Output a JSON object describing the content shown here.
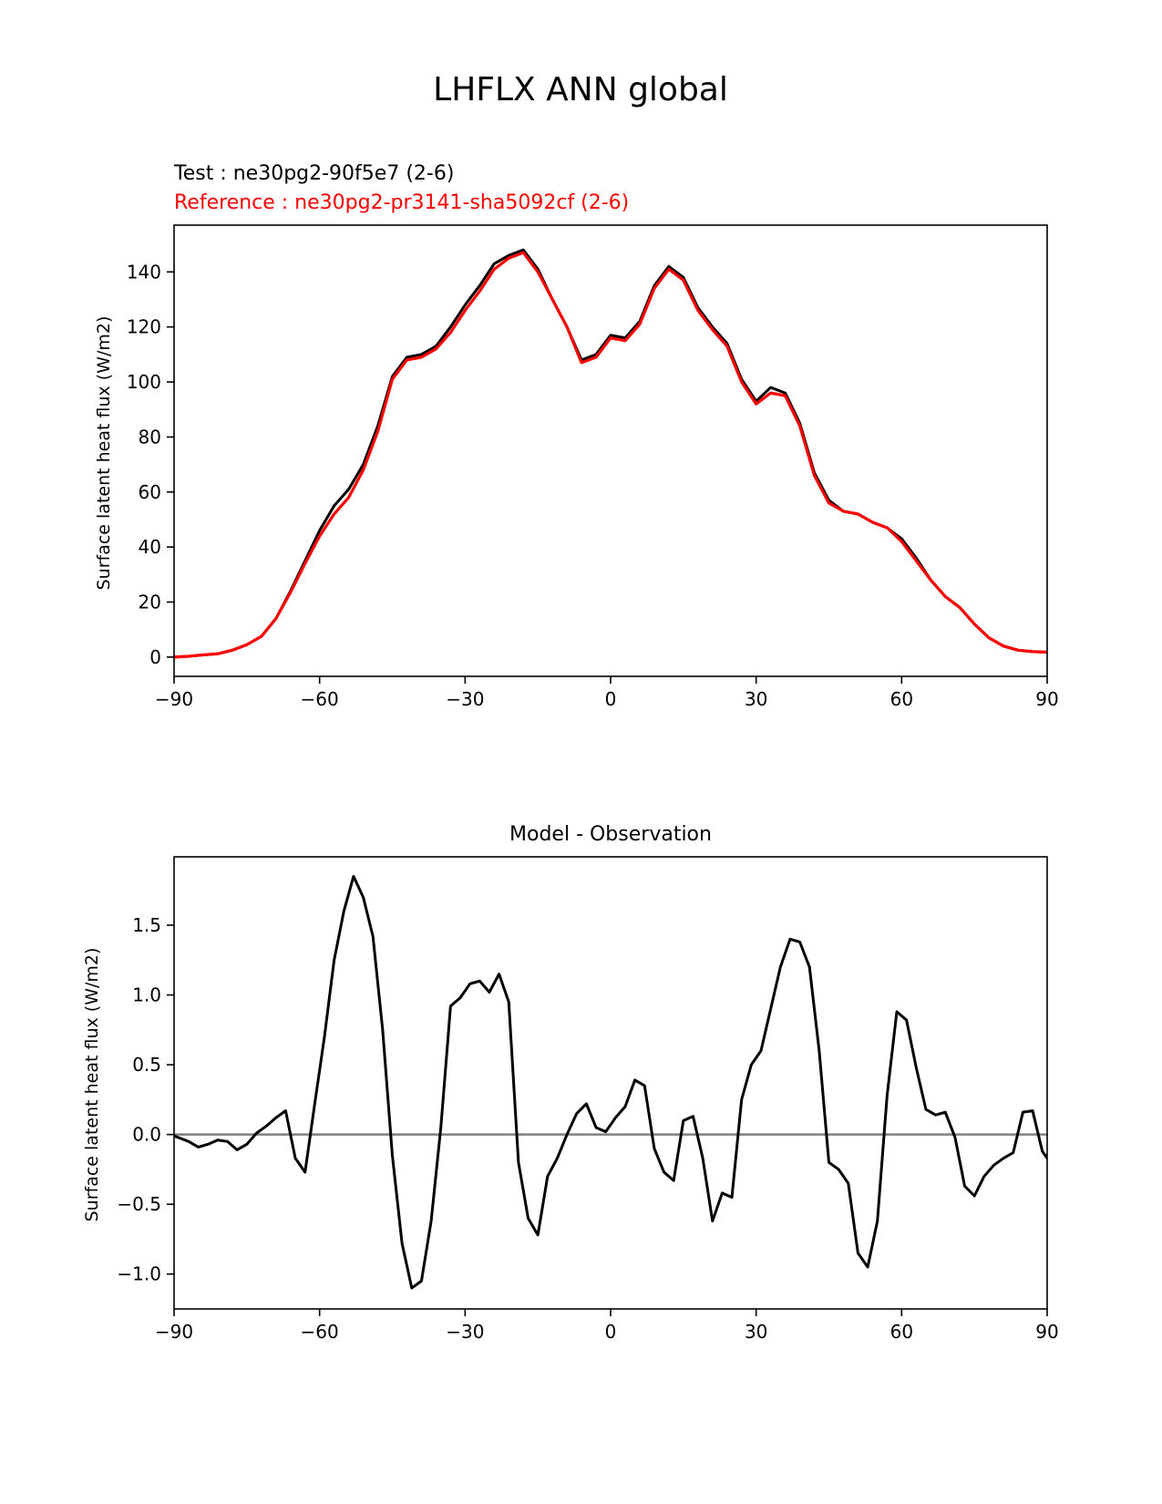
{
  "figure": {
    "title": "LHFLX ANN global"
  },
  "chart_data": [
    {
      "type": "line",
      "test_label": "Test : ne30pg2-90f5e7 (2-6)",
      "reference_label": "Reference : ne30pg2-pr3141-sha5092cf (2-6)",
      "title": "",
      "xlabel": "",
      "ylabel": "Surface latent heat flux (W/m2)",
      "xlim": [
        -90,
        90
      ],
      "ylim": [
        -7,
        157
      ],
      "xticks": [
        -90,
        -60,
        -30,
        0,
        30,
        60,
        90
      ],
      "xtick_labels": [
        "−90",
        "−60",
        "−30",
        "0",
        "30",
        "60",
        "90"
      ],
      "yticks": [
        0,
        20,
        40,
        60,
        80,
        100,
        120,
        140
      ],
      "ytick_labels": [
        "0",
        "20",
        "40",
        "60",
        "80",
        "100",
        "120",
        "140"
      ],
      "grid": false,
      "colors": {
        "test": "#000000",
        "reference": "#ff0000"
      },
      "x": [
        -90,
        -87,
        -84,
        -81,
        -78,
        -75,
        -72,
        -69,
        -66,
        -63,
        -60,
        -57,
        -54,
        -51,
        -48,
        -45,
        -42,
        -39,
        -36,
        -33,
        -30,
        -27,
        -24,
        -21,
        -18,
        -15,
        -12,
        -9,
        -6,
        -3,
        0,
        3,
        6,
        9,
        12,
        15,
        18,
        21,
        24,
        27,
        30,
        33,
        36,
        39,
        42,
        45,
        48,
        51,
        54,
        57,
        60,
        63,
        66,
        69,
        72,
        75,
        78,
        81,
        84,
        87,
        90
      ],
      "series": [
        {
          "name": "Test",
          "values": [
            0,
            0.3,
            0.8,
            1.2,
            2.5,
            4.5,
            7.5,
            14,
            24,
            35,
            46,
            55,
            61,
            70,
            84,
            102,
            109,
            110,
            113,
            120,
            128,
            135,
            143,
            146,
            148,
            141,
            130,
            120,
            108,
            110,
            117,
            116,
            122,
            135,
            142,
            138,
            127,
            120,
            114,
            101,
            93,
            98,
            96,
            85,
            67,
            57,
            53,
            52,
            49,
            47,
            43,
            36,
            28,
            22,
            18,
            12,
            7,
            4,
            2.5,
            2,
            1.8
          ]
        },
        {
          "name": "Reference",
          "values": [
            0,
            0.3,
            0.8,
            1.2,
            2.5,
            4.5,
            7.5,
            14,
            23.5,
            34,
            44,
            52,
            58,
            68,
            82,
            101,
            108,
            109,
            112,
            118,
            126,
            133,
            141,
            145,
            147,
            140,
            130,
            120,
            107,
            109,
            116,
            115,
            121,
            134,
            141,
            137,
            126,
            119,
            113,
            100,
            92,
            96,
            95,
            84,
            66,
            56,
            53,
            52,
            49,
            47,
            42,
            35,
            28,
            22,
            18,
            12,
            7,
            4,
            2.5,
            2,
            1.8
          ]
        }
      ]
    },
    {
      "type": "line",
      "title": "Model - Observation",
      "xlabel": "",
      "ylabel": "Surface latent heat flux (W/m2)",
      "xlim": [
        -90,
        90
      ],
      "ylim": [
        -1.25,
        1.99
      ],
      "xticks": [
        -90,
        -60,
        -30,
        0,
        30,
        60,
        90
      ],
      "xtick_labels": [
        "−90",
        "−60",
        "−30",
        "0",
        "30",
        "60",
        "90"
      ],
      "yticks": [
        -1.0,
        -0.5,
        0.0,
        0.5,
        1.0,
        1.5
      ],
      "ytick_labels": [
        "−1.0",
        "−0.5",
        "0.0",
        "0.5",
        "1.0",
        "1.5"
      ],
      "grid": false,
      "zero_line": true,
      "colors": {
        "difference": "#000000",
        "zero_line": "#808080"
      },
      "x": [
        -90,
        -87,
        -85,
        -83,
        -81,
        -79,
        -77,
        -75,
        -73,
        -71,
        -69,
        -67,
        -65,
        -63,
        -61,
        -59,
        -57,
        -55,
        -53,
        -51,
        -49,
        -47,
        -45,
        -43,
        -41,
        -39,
        -37,
        -35,
        -33,
        -31,
        -29,
        -27,
        -25,
        -23,
        -21,
        -19,
        -17,
        -15,
        -13,
        -11,
        -9,
        -7,
        -5,
        -3,
        -1,
        1,
        3,
        5,
        7,
        9,
        11,
        13,
        15,
        17,
        19,
        21,
        23,
        25,
        27,
        29,
        31,
        33,
        35,
        37,
        39,
        41,
        43,
        45,
        47,
        49,
        51,
        53,
        55,
        57,
        59,
        61,
        63,
        65,
        67,
        69,
        71,
        73,
        75,
        77,
        79,
        81,
        83,
        85,
        87,
        89,
        90
      ],
      "series": [
        {
          "name": "Model - Observation",
          "values": [
            -0.01,
            -0.05,
            -0.09,
            -0.07,
            -0.04,
            -0.05,
            -0.11,
            -0.07,
            0.01,
            0.06,
            0.12,
            0.17,
            -0.17,
            -0.27,
            0.22,
            0.7,
            1.25,
            1.6,
            1.85,
            1.7,
            1.42,
            0.75,
            -0.15,
            -0.78,
            -1.1,
            -1.05,
            -0.62,
            0.05,
            0.92,
            0.98,
            1.08,
            1.1,
            1.02,
            1.15,
            0.95,
            -0.2,
            -0.6,
            -0.72,
            -0.3,
            -0.17,
            0.0,
            0.15,
            0.22,
            0.05,
            0.02,
            0.12,
            0.2,
            0.39,
            0.35,
            -0.1,
            -0.27,
            -0.33,
            0.1,
            0.13,
            -0.17,
            -0.62,
            -0.42,
            -0.45,
            0.25,
            0.5,
            0.6,
            0.9,
            1.2,
            1.4,
            1.38,
            1.2,
            0.6,
            -0.2,
            -0.25,
            -0.35,
            -0.85,
            -0.95,
            -0.62,
            0.28,
            0.88,
            0.82,
            0.48,
            0.18,
            0.14,
            0.16,
            -0.02,
            -0.37,
            -0.44,
            -0.3,
            -0.22,
            -0.17,
            -0.13,
            0.16,
            0.17,
            -0.12,
            -0.17
          ]
        }
      ]
    }
  ]
}
